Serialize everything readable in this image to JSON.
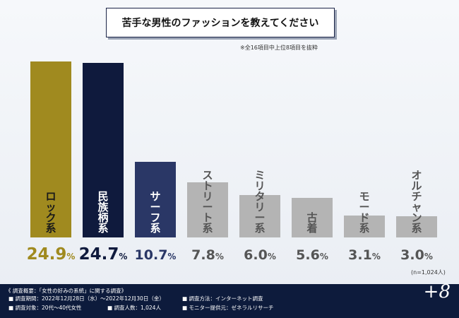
{
  "title": "苦手な男性のファッションを教えてください",
  "note": "※全16項目中上位8項目を抜粋",
  "sample_note": "(n=1,024人)",
  "chart_data": {
    "type": "bar",
    "categories": [
      "ロック系",
      "民族柄系",
      "サーフ系",
      "ストリート系",
      "ミリタリー系",
      "古着",
      "モード系",
      "オルチャン系"
    ],
    "values": [
      24.9,
      24.7,
      10.7,
      7.8,
      6.0,
      5.6,
      3.1,
      3.0
    ],
    "value_labels": [
      "24.9%",
      "24.7%",
      "10.7%",
      "7.8%",
      "6.0%",
      "5.6%",
      "3.1%",
      "3.0%"
    ],
    "colors": [
      "#a08a1f",
      "#0f1a3d",
      "#2a3766",
      "#b4b4b4",
      "#b4b4b4",
      "#b4b4b4",
      "#b4b4b4",
      "#b4b4b4"
    ],
    "label_colors": [
      "#1a1a1a",
      "#ffffff",
      "#ffffff",
      "#555555",
      "#555555",
      "#555555",
      "#555555",
      "#555555"
    ],
    "value_colors": [
      "#a08a1f",
      "#0f1a3d",
      "#2a3766",
      "#555555",
      "#555555",
      "#555555",
      "#555555",
      "#555555"
    ],
    "unit": "%",
    "ylim": [
      0,
      25
    ]
  },
  "footer": {
    "heading": "《 調査概要：「女性の好みの系統」に関する調査》",
    "items": [
      "■ 調査期間：2022年12月28日（水）〜2022年12月30日（金）",
      "■ 調査方法：インターネット調査",
      "■ 調査対象：20代〜40代女性",
      "■ 調査人数：1,024人",
      "■ モニター提供元：ゼネラルリサーチ"
    ],
    "logo": "+8"
  }
}
